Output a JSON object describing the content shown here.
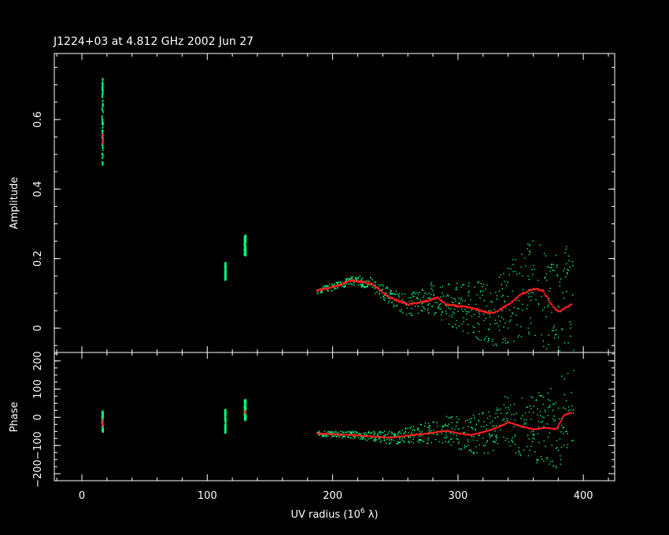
{
  "chart_data": {
    "type": "scatter",
    "title": "J1224+03 at 4.812 GHz 2002 Jun 27",
    "xlabel": "UV radius  (10",
    "xlabel_sup": "6",
    "xlabel_tail": " λ)",
    "xlim": [
      -22,
      425
    ],
    "xticks": [
      0,
      100,
      200,
      300,
      400
    ],
    "colors": {
      "data": "#00ff80",
      "model": "#ff2020",
      "axes": "#ffffff",
      "background": "#000000"
    },
    "panels": [
      {
        "id": "amplitude",
        "ylabel": "Amplitude",
        "ylim": [
          -0.07,
          0.79
        ],
        "yticks": [
          0,
          0.2,
          0.4,
          0.6
        ],
        "ytick_labels": [
          "0",
          "0.2",
          "0.4",
          "0.6"
        ],
        "series": [
          {
            "kind": "data",
            "clusters": [
              {
                "x": [
                  15.5,
                  16.5
                ],
                "y": [
                  0.47,
                  0.72
                ]
              },
              {
                "x": [
                  113.5,
                  114.5
                ],
                "y": [
                  0.14,
                  0.19
                ]
              },
              {
                "x": [
                  129,
                  130.5
                ],
                "y": [
                  0.21,
                  0.27
                ]
              }
            ],
            "scatter_range": {
              "x": [
                187,
                392
              ],
              "y_center_at": "model",
              "spread_start": 0.01,
              "spread_end": 0.2
            }
          },
          {
            "kind": "model",
            "clusters": [
              {
                "x": [
                  16,
                  16.5
                ],
                "y": [
                  0.53,
                  0.56
                ]
              }
            ],
            "curve": {
              "x": [
                187,
                200,
                215,
                230,
                245,
                260,
                275,
                283,
                290,
                300,
                310,
                320,
                325,
                330,
                340,
                350,
                360,
                367,
                372,
                376,
                380,
                385,
                390
              ],
              "y": [
                0.11,
                0.12,
                0.14,
                0.13,
                0.09,
                0.07,
                0.08,
                0.09,
                0.07,
                0.065,
                0.06,
                0.05,
                0.045,
                0.05,
                0.07,
                0.1,
                0.115,
                0.11,
                0.08,
                0.06,
                0.05,
                0.06,
                0.07
              ]
            }
          }
        ]
      },
      {
        "id": "phase",
        "ylabel": "Phase",
        "ylim": [
          -225,
          230
        ],
        "yticks": [
          -200,
          -100,
          0,
          100,
          200
        ],
        "ytick_labels": [
          "−200",
          "−100",
          "0",
          "100",
          "200"
        ],
        "series": [
          {
            "kind": "data",
            "clusters": [
              {
                "x": [
                  15.5,
                  16.5
                ],
                "y": [
                  -50,
                  25
                ]
              },
              {
                "x": [
                  113.5,
                  114.5
                ],
                "y": [
                  -55,
                  30
                ]
              },
              {
                "x": [
                  129,
                  130.5
                ],
                "y": [
                  -10,
                  65
                ]
              }
            ],
            "scatter_range": {
              "x": [
                187,
                392
              ],
              "y_center_at": "model",
              "spread_start": 10,
              "spread_end": 170
            }
          },
          {
            "kind": "model",
            "clusters": [
              {
                "x": [
                  15.8,
                  16.3
                ],
                "y": [
                  -30,
                  -5
                ]
              },
              {
                "x": [
                  129.5,
                  130
                ],
                "y": [
                  15,
                  25
                ]
              }
            ],
            "curve": {
              "x": [
                187,
                200,
                215,
                230,
                245,
                260,
                275,
                290,
                300,
                310,
                320,
                330,
                340,
                350,
                360,
                370,
                378,
                384,
                390
              ],
              "y": [
                -55,
                -58,
                -60,
                -65,
                -70,
                -62,
                -55,
                -45,
                -55,
                -60,
                -50,
                -35,
                -15,
                -30,
                -40,
                -35,
                -40,
                10,
                20
              ]
            }
          }
        ]
      }
    ]
  }
}
